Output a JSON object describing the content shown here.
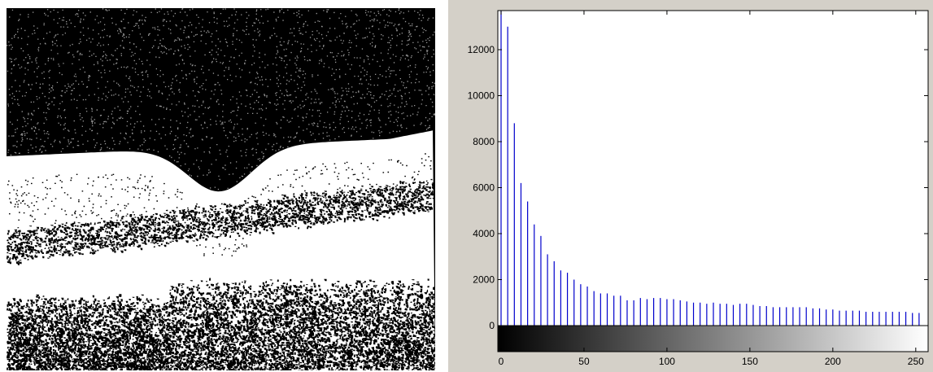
{
  "figure": {
    "left_panel": "oct-scan-image"
  },
  "chart_data": {
    "type": "bar",
    "title": "",
    "xlabel": "",
    "ylabel": "",
    "xlim": [
      0,
      255
    ],
    "ylim": [
      -1200,
      13700
    ],
    "x_ticks": [
      0,
      50,
      100,
      150,
      200,
      250
    ],
    "x_tick_labels": [
      "0",
      "50",
      "100",
      "150",
      "200",
      "250"
    ],
    "y_ticks": [
      0,
      2000,
      4000,
      6000,
      8000,
      10000,
      12000
    ],
    "y_tick_labels": [
      "0",
      "2000",
      "4000",
      "6000",
      "8000",
      "10000",
      "12000"
    ],
    "bar_color": "#0000cc",
    "colorbar": {
      "from": "#000000",
      "to": "#ffffff"
    },
    "grid": false,
    "x": [
      0,
      4,
      8,
      12,
      16,
      20,
      24,
      28,
      32,
      36,
      40,
      44,
      48,
      52,
      56,
      60,
      64,
      68,
      72,
      76,
      80,
      84,
      88,
      92,
      96,
      100,
      104,
      108,
      112,
      116,
      120,
      124,
      128,
      132,
      136,
      140,
      144,
      148,
      152,
      156,
      160,
      164,
      168,
      172,
      176,
      180,
      184,
      188,
      192,
      196,
      200,
      204,
      208,
      212,
      216,
      220,
      224,
      228,
      232,
      236,
      240,
      244,
      248,
      252
    ],
    "values": [
      13700,
      13000,
      8800,
      6200,
      5400,
      4400,
      3900,
      3100,
      2800,
      2400,
      2300,
      2000,
      1800,
      1700,
      1500,
      1400,
      1400,
      1300,
      1300,
      1100,
      1100,
      1200,
      1150,
      1200,
      1200,
      1150,
      1150,
      1100,
      1050,
      1000,
      1000,
      950,
      1000,
      950,
      950,
      900,
      950,
      950,
      900,
      850,
      850,
      800,
      800,
      800,
      800,
      800,
      800,
      750,
      750,
      700,
      700,
      650,
      650,
      650,
      650,
      600,
      600,
      600,
      600,
      600,
      600,
      600,
      550,
      550
    ]
  }
}
